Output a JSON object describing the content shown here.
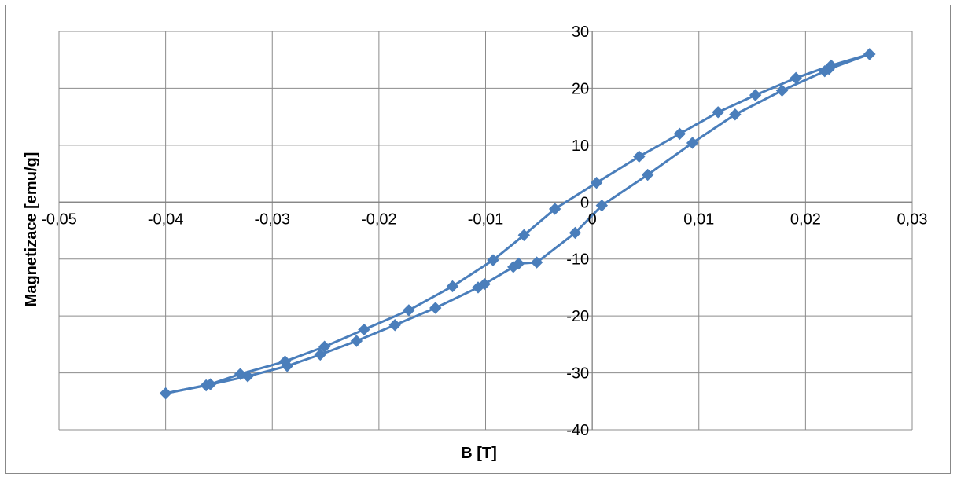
{
  "chart_data": {
    "type": "scatter",
    "title": "",
    "xlabel": "B [T]",
    "ylabel": "Magnetizace [emu/g]",
    "xlim": [
      -0.05,
      0.03
    ],
    "ylim": [
      -40,
      30
    ],
    "x_ticks": [
      "-0,05",
      "-0,04",
      "-0,03",
      "-0,02",
      "-0,01",
      "0",
      "0,01",
      "0,02",
      "0,03"
    ],
    "y_ticks": [
      "-40",
      "-30",
      "-20",
      "-10",
      "0",
      "10",
      "20",
      "30"
    ],
    "grid": true,
    "legend": "none",
    "series_color": "#4a7ebb",
    "marker": "diamond",
    "series": [
      {
        "name": "",
        "x": [
          0.026,
          0.0222,
          0.0218,
          0.0178,
          0.0134,
          0.0094,
          0.0052,
          0.0009,
          -0.0016,
          -0.0052,
          -0.0069,
          -0.0074,
          -0.0101,
          -0.0107,
          -0.0147,
          -0.0185,
          -0.0221,
          -0.0255,
          -0.0286,
          -0.0323,
          -0.0362,
          -0.04
        ],
        "y": [
          26,
          23.4,
          23,
          19.6,
          15.4,
          10.4,
          4.8,
          -0.6,
          -5.4,
          -10.6,
          -10.8,
          -11.4,
          -14.4,
          -15,
          -18.6,
          -21.6,
          -24.4,
          -26.8,
          -28.8,
          -30.6,
          -32.2,
          -33.6
        ]
      },
      {
        "name": "",
        "x": [
          -0.04,
          -0.0358,
          -0.033,
          -0.0288,
          -0.0251,
          -0.0214,
          -0.0172,
          -0.0131,
          -0.0093,
          -0.0064,
          -0.0035,
          0.0004,
          0.0044,
          0.0082,
          0.0118,
          0.0153,
          0.0191,
          0.0224,
          0.026
        ],
        "y": [
          -33.6,
          -32,
          -30.2,
          -28,
          -25.4,
          -22.4,
          -19,
          -14.8,
          -10.2,
          -5.8,
          -1.2,
          3.4,
          8,
          12,
          15.8,
          18.8,
          21.8,
          24,
          26
        ]
      }
    ]
  }
}
